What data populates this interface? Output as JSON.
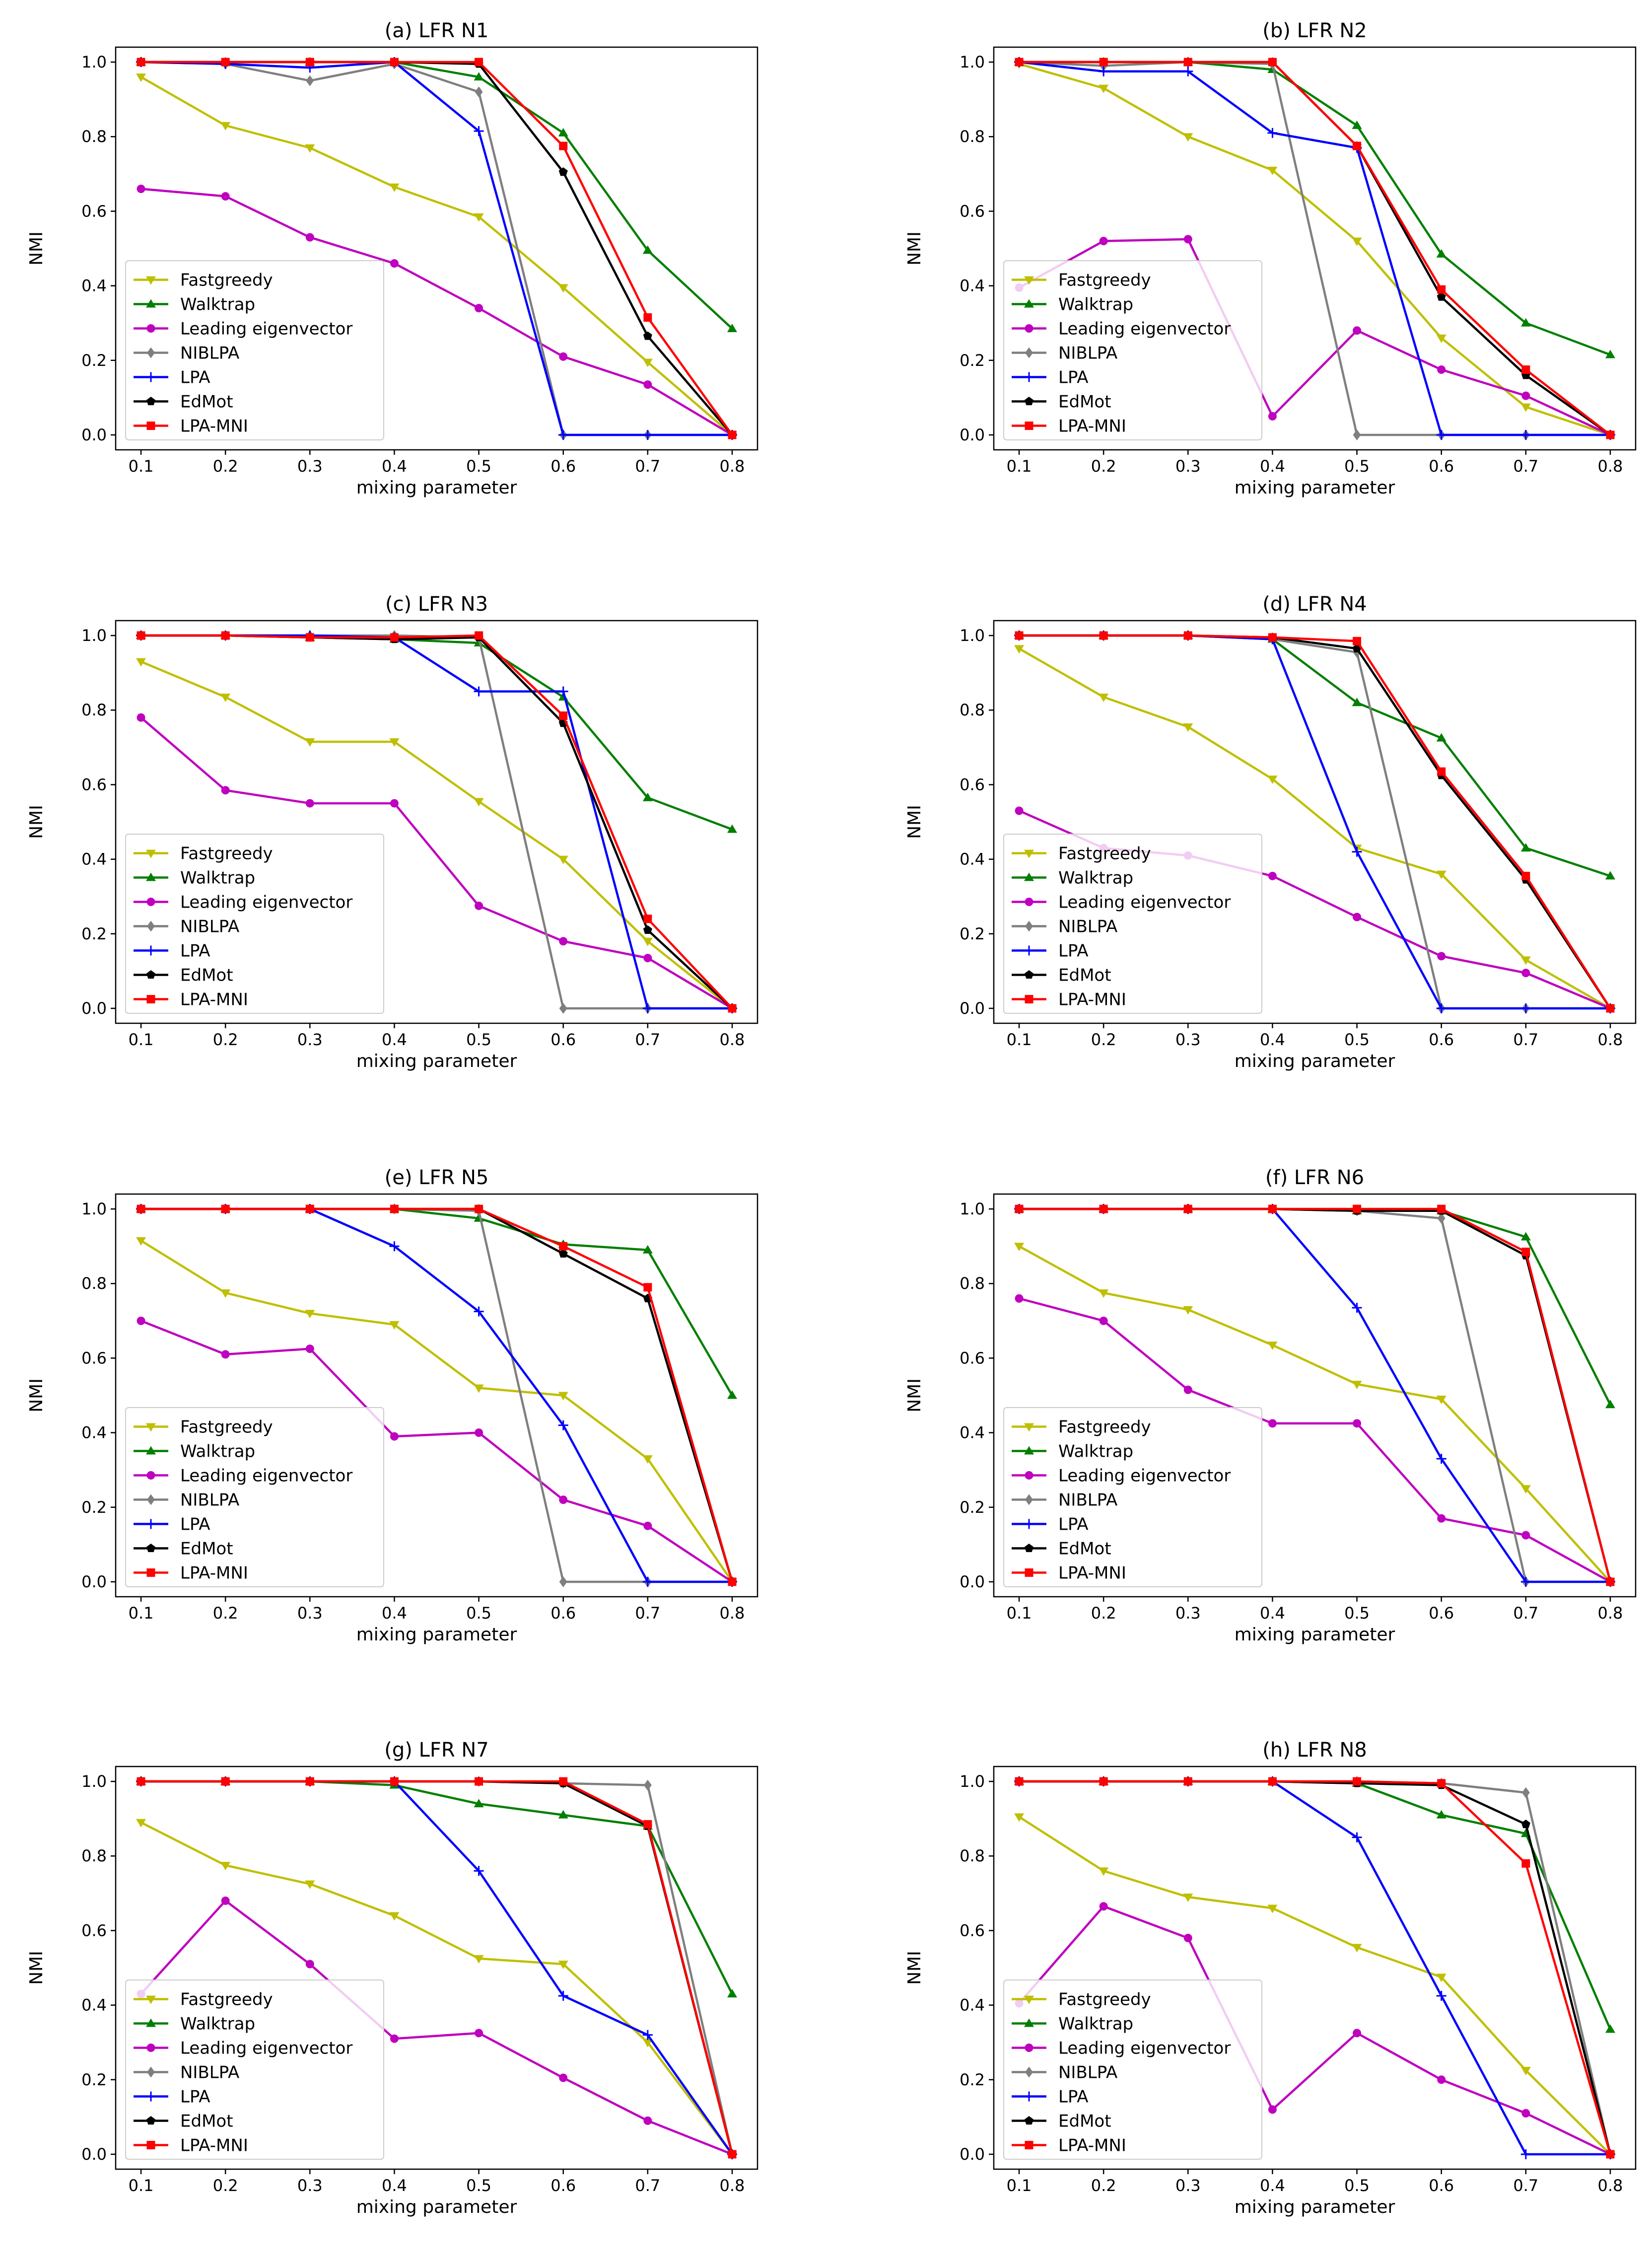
{
  "figure": {
    "x_label": "mixing parameter",
    "y_label": "NMI",
    "x_ticks": [
      "0.1",
      "0.2",
      "0.3",
      "0.4",
      "0.5",
      "0.6",
      "0.7",
      "0.8"
    ],
    "y_ticks": [
      "0.0",
      "0.2",
      "0.4",
      "0.6",
      "0.8",
      "1.0"
    ]
  },
  "series_styles": [
    {
      "name": "Fastgreedy",
      "color": "#bfbf00",
      "marker": "triangle-down"
    },
    {
      "name": "Walktrap",
      "color": "#007f00",
      "marker": "triangle-up"
    },
    {
      "name": "Leading eigenvector",
      "color": "#bf00bf",
      "marker": "circle"
    },
    {
      "name": "NIBLPA",
      "color": "#7f7f7f",
      "marker": "diamond"
    },
    {
      "name": "LPA",
      "color": "#0000ff",
      "marker": "plus"
    },
    {
      "name": "EdMot",
      "color": "#000000",
      "marker": "pentagon"
    },
    {
      "name": "LPA-MNI",
      "color": "#ff0000",
      "marker": "square"
    }
  ],
  "chart_data": [
    {
      "type": "line",
      "title": "(a) LFR N1",
      "xlabel": "mixing parameter",
      "ylabel": "NMI",
      "x": [
        0.1,
        0.2,
        0.3,
        0.4,
        0.5,
        0.6,
        0.7,
        0.8
      ],
      "xlim": [
        0.07,
        0.83
      ],
      "ylim": [
        -0.04,
        1.04
      ],
      "legend": "lower-left",
      "series": [
        {
          "name": "Fastgreedy",
          "values": [
            0.96,
            0.83,
            0.77,
            0.665,
            0.585,
            0.395,
            0.195,
            0.0
          ]
        },
        {
          "name": "Walktrap",
          "values": [
            1.0,
            1.0,
            1.0,
            1.0,
            0.96,
            0.81,
            0.495,
            0.285
          ]
        },
        {
          "name": "Leading eigenvector",
          "values": [
            0.66,
            0.64,
            0.53,
            0.46,
            0.34,
            0.21,
            0.135,
            0.0
          ]
        },
        {
          "name": "NIBLPA",
          "values": [
            1.0,
            0.995,
            0.95,
            0.995,
            0.92,
            0.0,
            0.0,
            0.0
          ]
        },
        {
          "name": "LPA",
          "values": [
            1.0,
            0.995,
            0.985,
            1.0,
            0.815,
            0.0,
            0.0,
            0.0
          ]
        },
        {
          "name": "EdMot",
          "values": [
            1.0,
            1.0,
            1.0,
            1.0,
            0.995,
            0.705,
            0.265,
            0.0
          ]
        },
        {
          "name": "LPA-MNI",
          "values": [
            1.0,
            1.0,
            1.0,
            1.0,
            1.0,
            0.775,
            0.315,
            0.0
          ]
        }
      ]
    },
    {
      "type": "line",
      "title": "(b) LFR N2",
      "xlabel": "mixing parameter",
      "ylabel": "NMI",
      "x": [
        0.1,
        0.2,
        0.3,
        0.4,
        0.5,
        0.6,
        0.7,
        0.8
      ],
      "xlim": [
        0.07,
        0.83
      ],
      "ylim": [
        -0.04,
        1.04
      ],
      "legend": "lower-left",
      "series": [
        {
          "name": "Fastgreedy",
          "values": [
            0.995,
            0.93,
            0.8,
            0.71,
            0.52,
            0.26,
            0.075,
            0.0
          ]
        },
        {
          "name": "Walktrap",
          "values": [
            1.0,
            1.0,
            1.0,
            0.98,
            0.83,
            0.485,
            0.3,
            0.215
          ]
        },
        {
          "name": "Leading eigenvector",
          "values": [
            0.395,
            0.52,
            0.525,
            0.05,
            0.28,
            0.175,
            0.105,
            0.0
          ]
        },
        {
          "name": "NIBLPA",
          "values": [
            1.0,
            0.99,
            1.0,
            0.995,
            0.0,
            0.0,
            0.0,
            0.0
          ]
        },
        {
          "name": "LPA",
          "values": [
            1.0,
            0.975,
            0.975,
            0.81,
            0.77,
            0.0,
            0.0,
            0.0
          ]
        },
        {
          "name": "EdMot",
          "values": [
            1.0,
            1.0,
            1.0,
            1.0,
            0.775,
            0.37,
            0.16,
            0.0
          ]
        },
        {
          "name": "LPA-MNI",
          "values": [
            1.0,
            1.0,
            1.0,
            1.0,
            0.775,
            0.39,
            0.175,
            0.0
          ]
        }
      ]
    },
    {
      "type": "line",
      "title": "(c) LFR N3",
      "xlabel": "mixing parameter",
      "ylabel": "NMI",
      "x": [
        0.1,
        0.2,
        0.3,
        0.4,
        0.5,
        0.6,
        0.7,
        0.8
      ],
      "xlim": [
        0.07,
        0.83
      ],
      "ylim": [
        -0.04,
        1.04
      ],
      "legend": "lower-left",
      "series": [
        {
          "name": "Fastgreedy",
          "values": [
            0.93,
            0.835,
            0.715,
            0.715,
            0.555,
            0.4,
            0.18,
            0.0
          ]
        },
        {
          "name": "Walktrap",
          "values": [
            1.0,
            1.0,
            0.995,
            0.99,
            0.98,
            0.835,
            0.565,
            0.48
          ]
        },
        {
          "name": "Leading eigenvector",
          "values": [
            0.78,
            0.585,
            0.55,
            0.55,
            0.275,
            0.18,
            0.135,
            0.0
          ]
        },
        {
          "name": "NIBLPA",
          "values": [
            1.0,
            1.0,
            1.0,
            1.0,
            0.995,
            0.0,
            0.0,
            0.0
          ]
        },
        {
          "name": "LPA",
          "values": [
            1.0,
            1.0,
            1.0,
            0.995,
            0.85,
            0.85,
            0.0,
            0.0
          ]
        },
        {
          "name": "EdMot",
          "values": [
            1.0,
            1.0,
            0.995,
            0.99,
            0.995,
            0.765,
            0.21,
            0.0
          ]
        },
        {
          "name": "LPA-MNI",
          "values": [
            1.0,
            1.0,
            0.995,
            0.995,
            1.0,
            0.785,
            0.24,
            0.0
          ]
        }
      ]
    },
    {
      "type": "line",
      "title": "(d) LFR N4",
      "xlabel": "mixing parameter",
      "ylabel": "NMI",
      "x": [
        0.1,
        0.2,
        0.3,
        0.4,
        0.5,
        0.6,
        0.7,
        0.8
      ],
      "xlim": [
        0.07,
        0.83
      ],
      "ylim": [
        -0.04,
        1.04
      ],
      "legend": "lower-left",
      "series": [
        {
          "name": "Fastgreedy",
          "values": [
            0.965,
            0.835,
            0.755,
            0.615,
            0.43,
            0.36,
            0.13,
            0.0
          ]
        },
        {
          "name": "Walktrap",
          "values": [
            1.0,
            1.0,
            1.0,
            0.99,
            0.82,
            0.725,
            0.43,
            0.355
          ]
        },
        {
          "name": "Leading eigenvector",
          "values": [
            0.53,
            0.43,
            0.41,
            0.355,
            0.245,
            0.14,
            0.095,
            0.0
          ]
        },
        {
          "name": "NIBLPA",
          "values": [
            1.0,
            1.0,
            1.0,
            0.99,
            0.955,
            0.0,
            0.0,
            0.0
          ]
        },
        {
          "name": "LPA",
          "values": [
            1.0,
            1.0,
            1.0,
            0.99,
            0.42,
            0.0,
            0.0,
            0.0
          ]
        },
        {
          "name": "EdMot",
          "values": [
            1.0,
            1.0,
            1.0,
            0.995,
            0.965,
            0.625,
            0.345,
            0.0
          ]
        },
        {
          "name": "LPA-MNI",
          "values": [
            1.0,
            1.0,
            1.0,
            0.995,
            0.985,
            0.635,
            0.355,
            0.0
          ]
        }
      ]
    },
    {
      "type": "line",
      "title": "(e) LFR N5",
      "xlabel": "mixing parameter",
      "ylabel": "NMI",
      "x": [
        0.1,
        0.2,
        0.3,
        0.4,
        0.5,
        0.6,
        0.7,
        0.8
      ],
      "xlim": [
        0.07,
        0.83
      ],
      "ylim": [
        -0.04,
        1.04
      ],
      "legend": "lower-left",
      "series": [
        {
          "name": "Fastgreedy",
          "values": [
            0.915,
            0.775,
            0.72,
            0.69,
            0.52,
            0.5,
            0.33,
            0.0
          ]
        },
        {
          "name": "Walktrap",
          "values": [
            1.0,
            1.0,
            1.0,
            1.0,
            0.975,
            0.905,
            0.89,
            0.5
          ]
        },
        {
          "name": "Leading eigenvector",
          "values": [
            0.7,
            0.61,
            0.625,
            0.39,
            0.4,
            0.22,
            0.15,
            0.0
          ]
        },
        {
          "name": "NIBLPA",
          "values": [
            1.0,
            1.0,
            1.0,
            1.0,
            0.995,
            0.0,
            0.0,
            0.0
          ]
        },
        {
          "name": "LPA",
          "values": [
            1.0,
            1.0,
            1.0,
            0.9,
            0.725,
            0.42,
            0.0,
            0.0
          ]
        },
        {
          "name": "EdMot",
          "values": [
            1.0,
            1.0,
            1.0,
            1.0,
            1.0,
            0.88,
            0.76,
            0.0
          ]
        },
        {
          "name": "LPA-MNI",
          "values": [
            1.0,
            1.0,
            1.0,
            1.0,
            1.0,
            0.9,
            0.79,
            0.0
          ]
        }
      ]
    },
    {
      "type": "line",
      "title": "(f) LFR N6",
      "xlabel": "mixing parameter",
      "ylabel": "NMI",
      "x": [
        0.1,
        0.2,
        0.3,
        0.4,
        0.5,
        0.6,
        0.7,
        0.8
      ],
      "xlim": [
        0.07,
        0.83
      ],
      "ylim": [
        -0.04,
        1.04
      ],
      "legend": "lower-left",
      "series": [
        {
          "name": "Fastgreedy",
          "values": [
            0.9,
            0.775,
            0.73,
            0.635,
            0.53,
            0.49,
            0.25,
            0.0
          ]
        },
        {
          "name": "Walktrap",
          "values": [
            1.0,
            1.0,
            1.0,
            1.0,
            0.995,
            0.995,
            0.925,
            0.475
          ]
        },
        {
          "name": "Leading eigenvector",
          "values": [
            0.76,
            0.7,
            0.515,
            0.425,
            0.425,
            0.17,
            0.125,
            0.0
          ]
        },
        {
          "name": "NIBLPA",
          "values": [
            1.0,
            1.0,
            1.0,
            1.0,
            0.995,
            0.975,
            0.0,
            0.0
          ]
        },
        {
          "name": "LPA",
          "values": [
            1.0,
            1.0,
            1.0,
            1.0,
            0.735,
            0.33,
            0.0,
            0.0
          ]
        },
        {
          "name": "EdMot",
          "values": [
            1.0,
            1.0,
            1.0,
            1.0,
            0.995,
            0.995,
            0.875,
            0.0
          ]
        },
        {
          "name": "LPA-MNI",
          "values": [
            1.0,
            1.0,
            1.0,
            1.0,
            1.0,
            1.0,
            0.885,
            0.0
          ]
        }
      ]
    },
    {
      "type": "line",
      "title": "(g) LFR N7",
      "xlabel": "mixing parameter",
      "ylabel": "NMI",
      "x": [
        0.1,
        0.2,
        0.3,
        0.4,
        0.5,
        0.6,
        0.7,
        0.8
      ],
      "xlim": [
        0.07,
        0.83
      ],
      "ylim": [
        -0.04,
        1.04
      ],
      "legend": "lower-left",
      "series": [
        {
          "name": "Fastgreedy",
          "values": [
            0.89,
            0.775,
            0.725,
            0.64,
            0.525,
            0.51,
            0.3,
            0.0
          ]
        },
        {
          "name": "Walktrap",
          "values": [
            1.0,
            1.0,
            1.0,
            0.99,
            0.94,
            0.91,
            0.88,
            0.43
          ]
        },
        {
          "name": "Leading eigenvector",
          "values": [
            0.43,
            0.68,
            0.51,
            0.31,
            0.325,
            0.205,
            0.09,
            0.0
          ]
        },
        {
          "name": "NIBLPA",
          "values": [
            1.0,
            1.0,
            1.0,
            1.0,
            1.0,
            0.995,
            0.99,
            0.0
          ]
        },
        {
          "name": "LPA",
          "values": [
            1.0,
            1.0,
            1.0,
            1.0,
            0.76,
            0.425,
            0.32,
            0.0
          ]
        },
        {
          "name": "EdMot",
          "values": [
            1.0,
            1.0,
            1.0,
            1.0,
            1.0,
            0.995,
            0.88,
            0.0
          ]
        },
        {
          "name": "LPA-MNI",
          "values": [
            1.0,
            1.0,
            1.0,
            1.0,
            1.0,
            1.0,
            0.885,
            0.0
          ]
        }
      ]
    },
    {
      "type": "line",
      "title": "(h) LFR N8",
      "xlabel": "mixing parameter",
      "ylabel": "NMI",
      "x": [
        0.1,
        0.2,
        0.3,
        0.4,
        0.5,
        0.6,
        0.7,
        0.8
      ],
      "xlim": [
        0.07,
        0.83
      ],
      "ylim": [
        -0.04,
        1.04
      ],
      "legend": "lower-left",
      "series": [
        {
          "name": "Fastgreedy",
          "values": [
            0.905,
            0.76,
            0.69,
            0.66,
            0.555,
            0.475,
            0.225,
            0.0
          ]
        },
        {
          "name": "Walktrap",
          "values": [
            1.0,
            1.0,
            1.0,
            1.0,
            0.995,
            0.91,
            0.86,
            0.335
          ]
        },
        {
          "name": "Leading eigenvector",
          "values": [
            0.405,
            0.665,
            0.58,
            0.12,
            0.325,
            0.2,
            0.11,
            0.0
          ]
        },
        {
          "name": "NIBLPA",
          "values": [
            1.0,
            1.0,
            1.0,
            1.0,
            1.0,
            0.995,
            0.97,
            0.0
          ]
        },
        {
          "name": "LPA",
          "values": [
            1.0,
            1.0,
            1.0,
            1.0,
            0.85,
            0.425,
            0.0,
            0.0
          ]
        },
        {
          "name": "EdMot",
          "values": [
            1.0,
            1.0,
            1.0,
            1.0,
            0.995,
            0.99,
            0.885,
            0.0
          ]
        },
        {
          "name": "LPA-MNI",
          "values": [
            1.0,
            1.0,
            1.0,
            1.0,
            1.0,
            0.995,
            0.78,
            0.0
          ]
        }
      ]
    }
  ]
}
